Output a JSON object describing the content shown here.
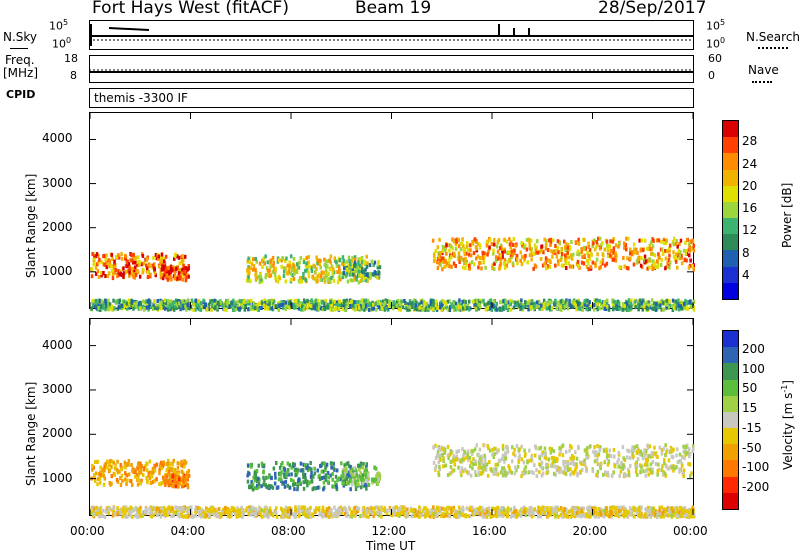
{
  "header": {
    "radar": "Fort Hays West (fitACF)",
    "beam": "Beam 19",
    "date": "28/Sep/2017"
  },
  "panels": {
    "nsky": {
      "left_label": "N.Sky",
      "left_ticks": [
        "10^5",
        "10^0"
      ],
      "right_ticks": [
        "10^5",
        "10^0"
      ],
      "right_label": "N.Search"
    },
    "freq": {
      "left_label_1": "Freq.",
      "left_label_2": "[MHz]",
      "left_ticks": [
        "18",
        "8"
      ],
      "right_ticks": [
        "60",
        "0"
      ],
      "right_label": "Nave"
    },
    "cpid": {
      "label": "CPID",
      "value": "themis -3300 IF"
    }
  },
  "axes": {
    "ylabel": "Slant Range [km]",
    "xlabel": "Time UT",
    "y_ticks": [
      "4000",
      "3000",
      "2000",
      "1000"
    ],
    "x_ticks": [
      "00:00",
      "04:00",
      "08:00",
      "12:00",
      "16:00",
      "20:00",
      "00:00"
    ]
  },
  "colorbars": {
    "power": {
      "label": "Power [dB]",
      "ticks": [
        "28",
        "24",
        "20",
        "16",
        "12",
        "8",
        "4"
      ],
      "colors": [
        "#d80000",
        "#ff4000",
        "#ff8c00",
        "#f0b400",
        "#e0e000",
        "#9cd63c",
        "#3cb371",
        "#2e8b57",
        "#2060b0",
        "#1a30d0",
        "#0000e0"
      ]
    },
    "velocity": {
      "label": "Velocity [m s^-1]",
      "ticks": [
        "200",
        "100",
        "50",
        "15",
        "-15",
        "-50",
        "-100",
        "-200"
      ],
      "colors": [
        "#1a30d0",
        "#2e64b4",
        "#3c9650",
        "#5abe3c",
        "#a0d046",
        "#c8c8c0",
        "#e6c800",
        "#f0a000",
        "#ff7800",
        "#ff2800",
        "#dc0000"
      ]
    }
  },
  "chart_data": {
    "type": "heatmap",
    "title": "Fort Hays West (fitACF) Beam 19 28/Sep/2017",
    "xlabel": "Time UT",
    "ylabel": "Slant Range [km]",
    "xlim": [
      0,
      24
    ],
    "ylim": [
      180,
      4600
    ],
    "x_ticks_hours": [
      0,
      4,
      8,
      12,
      16,
      20,
      24
    ],
    "y_ticks_km": [
      1000,
      2000,
      3000,
      4000
    ],
    "regions": [
      {
        "t0": 0.0,
        "t1": 3.9,
        "r0": 900,
        "r1": 1450,
        "power": 25,
        "velocity": -90
      },
      {
        "t0": 2.9,
        "t1": 3.9,
        "r0": 850,
        "r1": 1150,
        "power": 28,
        "velocity": -140
      },
      {
        "t0": 6.2,
        "t1": 11.0,
        "r0": 800,
        "r1": 1400,
        "power": 18,
        "velocity": 150
      },
      {
        "t0": 10.0,
        "t1": 11.5,
        "r0": 900,
        "r1": 1300,
        "power": 12,
        "velocity": 60
      },
      {
        "t0": 13.6,
        "t1": 24.0,
        "r0": 1100,
        "r1": 1800,
        "power": 22,
        "velocity": 0
      },
      {
        "t0": 0.0,
        "t1": 24.0,
        "r0": 180,
        "r1": 400,
        "power": 12,
        "velocity": -30
      }
    ]
  }
}
